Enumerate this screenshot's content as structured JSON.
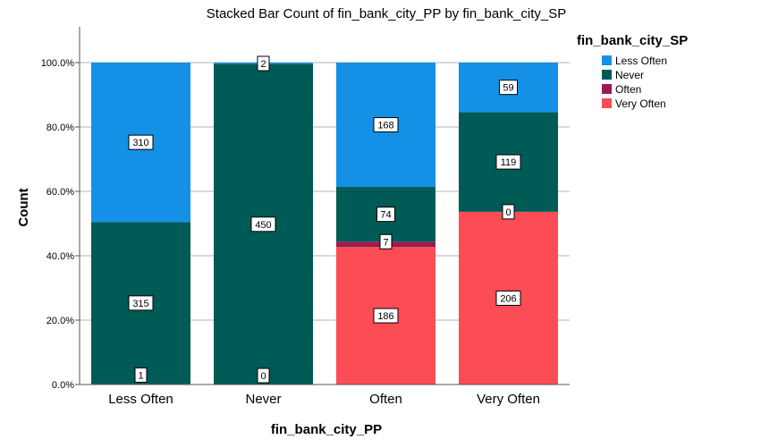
{
  "chart_data": {
    "type": "bar",
    "stacked": true,
    "normalized": true,
    "title": "Stacked Bar Count of fin_bank_city_PP by fin_bank_city_SP",
    "xlabel": "fin_bank_city_PP",
    "ylabel": "Count",
    "ylim": [
      0,
      100
    ],
    "yticks": [
      "0.0%",
      "20.0%",
      "40.0%",
      "60.0%",
      "80.0%",
      "100.0%"
    ],
    "ytick_values": [
      0,
      20,
      40,
      60,
      80,
      100
    ],
    "grid": true,
    "legend_title": "fin_bank_city_SP",
    "legend_position": "top-right",
    "categories": [
      "Less Often",
      "Never",
      "Often",
      "Very Often"
    ],
    "series": [
      {
        "name": "Very Often",
        "color": "#fc4c55",
        "values": [
          1,
          0,
          186,
          206
        ]
      },
      {
        "name": "Often",
        "color": "#9a1a52",
        "values": [
          0,
          0,
          7,
          0
        ]
      },
      {
        "name": "Never",
        "color": "#005a56",
        "values": [
          315,
          450,
          74,
          119
        ]
      },
      {
        "name": "Less Often",
        "color": "#1490e6",
        "values": [
          310,
          2,
          168,
          59
        ]
      }
    ],
    "legend_order": [
      "Less Often",
      "Never",
      "Often",
      "Very Often"
    ],
    "data_labels": [
      {
        "category": "Less Often",
        "series": "Very Often",
        "text": "1"
      },
      {
        "category": "Less Often",
        "series": "Never",
        "text": "315"
      },
      {
        "category": "Less Often",
        "series": "Less Often",
        "text": "310"
      },
      {
        "category": "Never",
        "series": "Very Often",
        "text": "0"
      },
      {
        "category": "Never",
        "series": "Never",
        "text": "450"
      },
      {
        "category": "Never",
        "series": "Less Often",
        "text": "2"
      },
      {
        "category": "Often",
        "series": "Very Often",
        "text": "186"
      },
      {
        "category": "Often",
        "series": "Often",
        "text": "7"
      },
      {
        "category": "Often",
        "series": "Never",
        "text": "74"
      },
      {
        "category": "Often",
        "series": "Less Often",
        "text": "168"
      },
      {
        "category": "Very Often",
        "series": "Very Often",
        "text": "206"
      },
      {
        "category": "Very Often",
        "series": "Often",
        "text": "0"
      },
      {
        "category": "Very Often",
        "series": "Never",
        "text": "119"
      },
      {
        "category": "Very Often",
        "series": "Less Often",
        "text": "59"
      }
    ]
  }
}
